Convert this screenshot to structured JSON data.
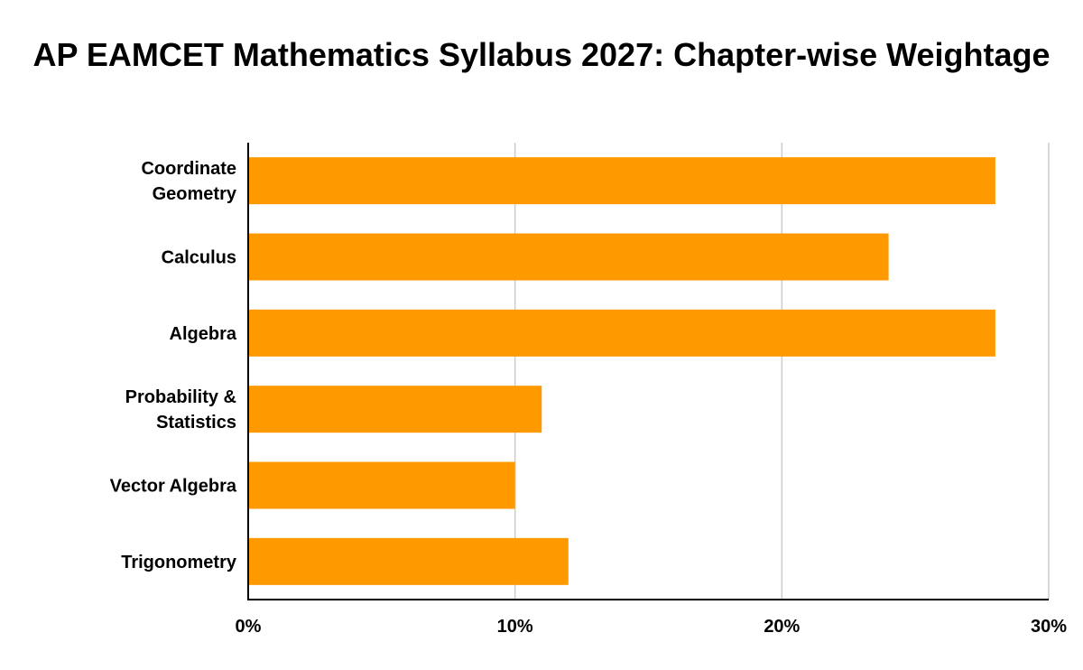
{
  "chart_data": {
    "type": "bar",
    "orientation": "horizontal",
    "title": "AP EAMCET Mathematics Syllabus 2027: Chapter-wise Weightage",
    "xlabel": "",
    "ylabel": "",
    "categories": [
      "Coordinate Geometry",
      "Calculus",
      "Algebra",
      "Probability & Statistics",
      "Vector Algebra",
      "Trigonometry"
    ],
    "values": [
      28,
      24,
      28,
      11,
      10,
      12
    ],
    "value_unit": "%",
    "xlim": [
      0,
      30
    ],
    "xticks": [
      0,
      10,
      20,
      30
    ],
    "xtick_labels": [
      "0%",
      "10%",
      "20%",
      "30%"
    ],
    "grid": "vertical",
    "legend": "none",
    "bar_color": "#FF9900"
  }
}
